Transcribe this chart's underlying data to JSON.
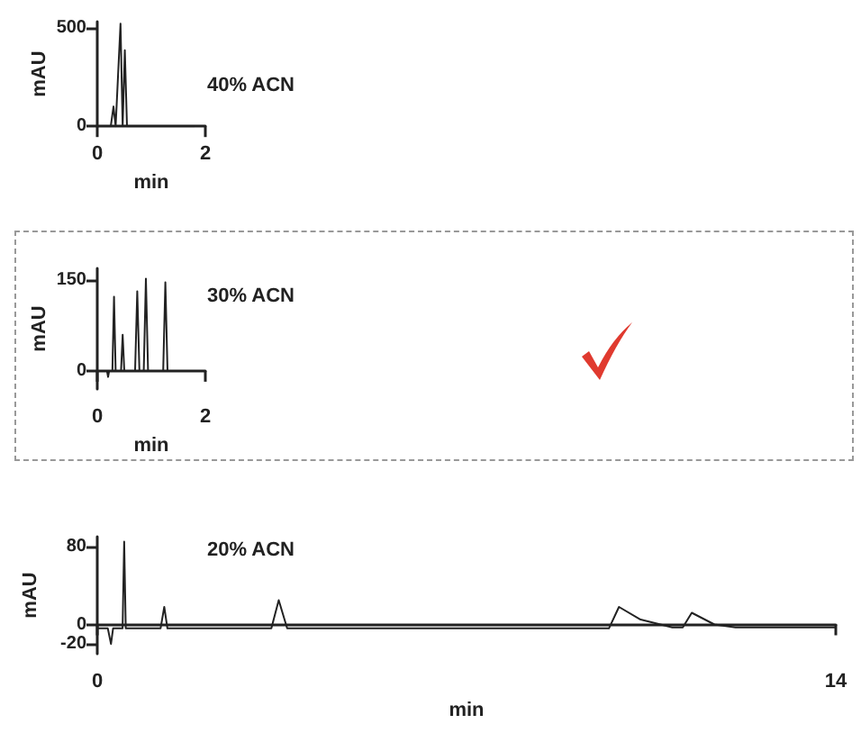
{
  "chart_data": [
    {
      "type": "line",
      "title": "40% ACN",
      "xlabel": "min",
      "ylabel": "mAU",
      "xlim": [
        0,
        2
      ],
      "xticks": [
        0,
        2
      ],
      "ylim": [
        0,
        530
      ],
      "yticks": [
        0,
        500
      ],
      "grid": false,
      "marker": "none",
      "line_style": "solid",
      "series": [
        {
          "color": "#222222",
          "x": [
            0,
            0.25,
            0.3,
            0.34,
            0.43,
            0.47,
            0.51,
            0.55,
            1.8
          ],
          "values": [
            0,
            0,
            100,
            0,
            520,
            0,
            385,
            0,
            0
          ]
        }
      ]
    },
    {
      "type": "line",
      "title": "30% ACN",
      "xlabel": "min",
      "ylabel": "mAU",
      "xlim": [
        0,
        2
      ],
      "xticks": [
        0,
        2
      ],
      "ylim": [
        -30,
        170
      ],
      "yticks": [
        0,
        150
      ],
      "grid": false,
      "marker": "none",
      "line_style": "solid",
      "series": [
        {
          "color": "#222222",
          "x": [
            0,
            0.18,
            0.2,
            0.22,
            0.28,
            0.31,
            0.34,
            0.44,
            0.47,
            0.5,
            0.7,
            0.74,
            0.78,
            0.86,
            0.9,
            0.94,
            1.22,
            1.26,
            1.3,
            1.8
          ],
          "values": [
            0,
            0,
            -10,
            0,
            0,
            123,
            0,
            0,
            60,
            0,
            0,
            132,
            0,
            0,
            153,
            0,
            0,
            147,
            0,
            0
          ]
        }
      ]
    },
    {
      "type": "line",
      "title": "20% ACN",
      "xlabel": "min",
      "ylabel": "mAU",
      "xlim": [
        0,
        14
      ],
      "xticks": [
        0,
        14
      ],
      "ylim": [
        -30,
        90
      ],
      "yticks": [
        -20,
        0,
        80
      ],
      "grid": false,
      "marker": "none",
      "line_style": "solid",
      "series": [
        {
          "color": "#222222",
          "x": [
            0,
            0.2,
            0.26,
            0.3,
            0.48,
            0.51,
            0.54,
            1.2,
            1.27,
            1.33,
            3.3,
            3.44,
            3.6,
            9.7,
            9.89,
            10.3,
            10.9,
            11.1,
            11.27,
            11.7,
            12.1,
            14
          ],
          "values": [
            -4,
            -4,
            -20,
            -4,
            -4,
            85,
            -4,
            -4,
            18,
            -4,
            -4,
            25,
            -4,
            -4,
            18,
            5,
            -3,
            -3,
            12,
            0,
            -3,
            -3
          ]
        }
      ]
    }
  ]
}
